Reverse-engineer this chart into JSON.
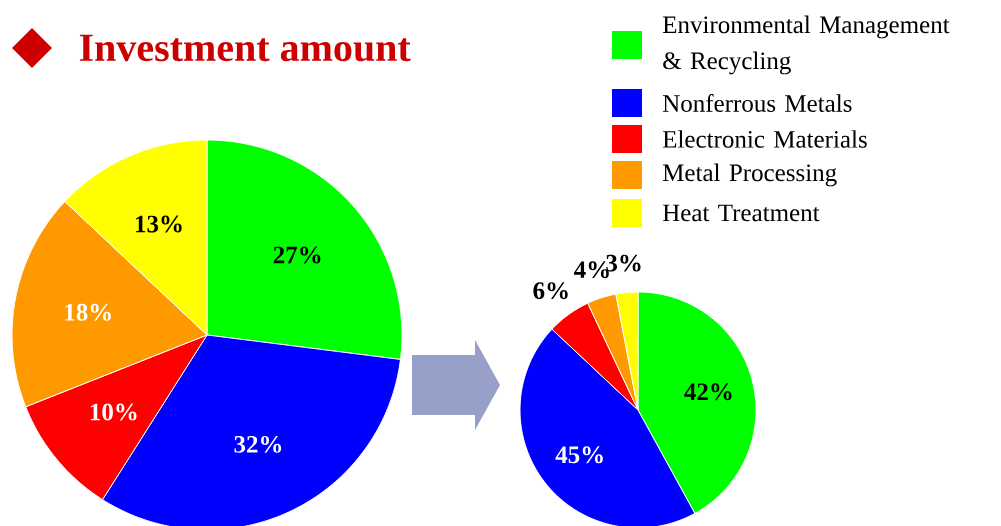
{
  "chart_data": [
    {
      "type": "pie",
      "title": "Investment amount",
      "categories": [
        "Environmental Management & Recycling",
        "Nonferrous Metals",
        "Electronic Materials",
        "Metal Processing",
        "Heat Treatment"
      ],
      "values": [
        27,
        32,
        10,
        18,
        13
      ],
      "value_labels": [
        "27%",
        "32%",
        "10%",
        "18%",
        "13%"
      ],
      "colors": [
        "#00ff00",
        "#0000ff",
        "#ff0000",
        "#ff9900",
        "#ffff00"
      ],
      "legend": "top right"
    },
    {
      "type": "pie",
      "categories": [
        null,
        null,
        null,
        null,
        null
      ],
      "values": [
        42,
        45,
        6,
        4,
        3
      ],
      "value_labels": [
        "42%",
        "45%",
        "6%",
        "4%",
        "3%"
      ],
      "colors": [
        "#00ff00",
        "#0000ff",
        "#ff0000",
        "#ff9900",
        "#ffff00"
      ]
    }
  ]
}
